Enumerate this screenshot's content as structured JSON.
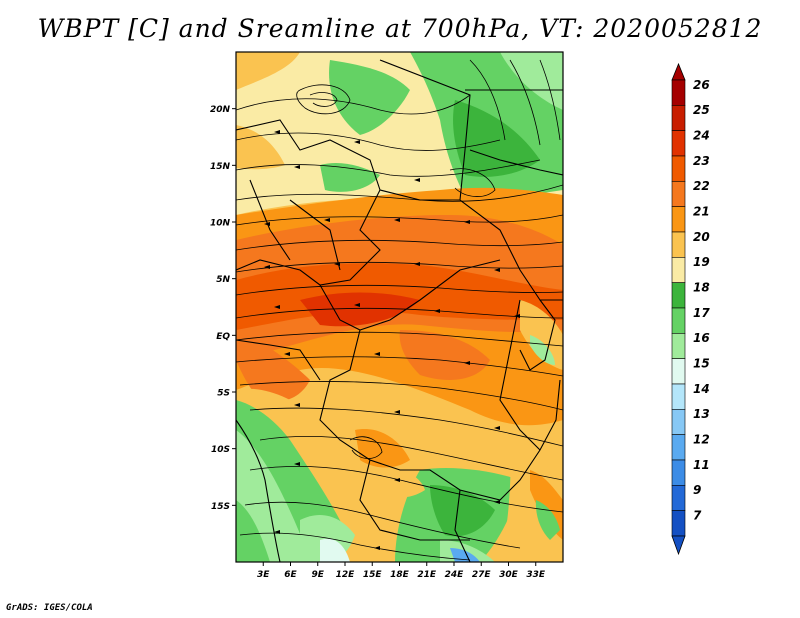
{
  "title": "WBPT [C] and Sreamline at 700hPa, VT: 2020052812",
  "credit": "GrADS: IGES/COLA",
  "map": {
    "region": "Central / Eastern Africa",
    "lon_range": [
      0,
      36
    ],
    "lat_range": [
      -20,
      25
    ],
    "lat_ticks": [
      {
        "value": 20,
        "label": "20N"
      },
      {
        "value": 15,
        "label": "15N"
      },
      {
        "value": 10,
        "label": "10N"
      },
      {
        "value": 5,
        "label": "5N"
      },
      {
        "value": 0,
        "label": "EQ"
      },
      {
        "value": -5,
        "label": "5S"
      },
      {
        "value": -10,
        "label": "10S"
      },
      {
        "value": -15,
        "label": "15S"
      }
    ],
    "lon_ticks": [
      {
        "value": 3,
        "label": "3E"
      },
      {
        "value": 6,
        "label": "6E"
      },
      {
        "value": 9,
        "label": "9E"
      },
      {
        "value": 12,
        "label": "12E"
      },
      {
        "value": 15,
        "label": "15E"
      },
      {
        "value": 18,
        "label": "18E"
      },
      {
        "value": 21,
        "label": "21E"
      },
      {
        "value": 24,
        "label": "24E"
      },
      {
        "value": 27,
        "label": "27E"
      },
      {
        "value": 30,
        "label": "30E"
      },
      {
        "value": 33,
        "label": "33E"
      }
    ]
  },
  "colorbar": {
    "labels": [
      "26",
      "25",
      "24",
      "23",
      "22",
      "21",
      "20",
      "19",
      "18",
      "17",
      "16",
      "15",
      "14",
      "13",
      "12",
      "11",
      "9",
      "7"
    ],
    "colors": [
      "#a50000",
      "#c81e00",
      "#e13200",
      "#f05a00",
      "#f5781e",
      "#fa9614",
      "#fac350",
      "#faeba5",
      "#3cb43c",
      "#64d264",
      "#a0eb9b",
      "#e1faf0",
      "#b4e6fa",
      "#87c8f5",
      "#5aaaf0",
      "#3c8ce6",
      "#2369d7",
      "#1450c3"
    ]
  }
}
